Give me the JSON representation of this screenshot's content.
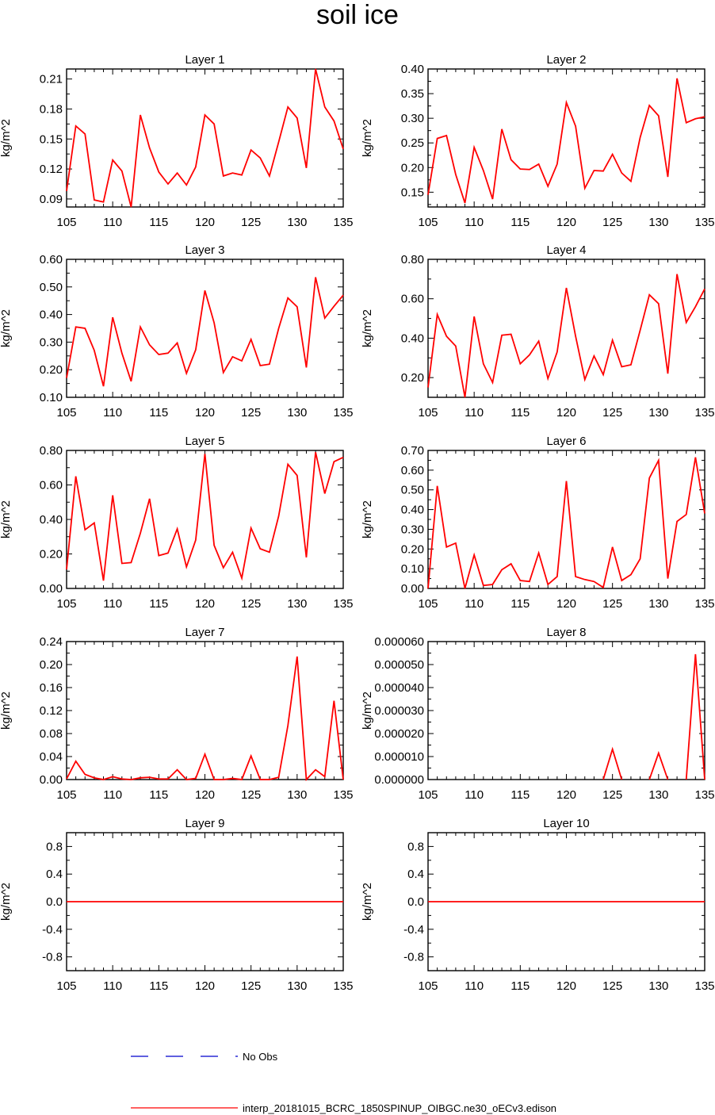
{
  "page_title": "soil ice",
  "colors": {
    "series": "#ff0000",
    "obs": "#0000cc",
    "axis": "#000000"
  },
  "legend": {
    "obs_label": "No Obs",
    "model_label": "interp_20181015_BCRC_1850SPINUP_OIBGC.ne30_oECv3.edison"
  },
  "chart_data": [
    {
      "type": "line",
      "title": "Layer 1",
      "ylabel": "kg/m^2",
      "xlim": [
        105,
        135
      ],
      "ylim": [
        0.082,
        0.22
      ],
      "xticks": [
        105,
        110,
        115,
        120,
        125,
        130,
        135
      ],
      "yticks": [
        0.09,
        0.12,
        0.15,
        0.18,
        0.21
      ],
      "ytick_labels": [
        "0.09",
        "0.12",
        "0.15",
        "0.18",
        "0.21"
      ],
      "x": [
        105,
        106,
        107,
        108,
        109,
        110,
        111,
        112,
        113,
        114,
        115,
        116,
        117,
        118,
        119,
        120,
        121,
        122,
        123,
        124,
        125,
        126,
        127,
        128,
        129,
        130,
        131,
        132,
        133,
        134,
        135
      ],
      "series": [
        {
          "name": "interp_20181015_BCRC_1850SPINUP_OIBGC.ne30_oECv3.edison",
          "values": [
            0.098,
            0.163,
            0.155,
            0.089,
            0.087,
            0.129,
            0.118,
            0.082,
            0.174,
            0.141,
            0.117,
            0.105,
            0.116,
            0.104,
            0.122,
            0.174,
            0.165,
            0.113,
            0.116,
            0.114,
            0.139,
            0.131,
            0.113,
            0.147,
            0.182,
            0.171,
            0.121,
            0.22,
            0.182,
            0.168,
            0.14
          ]
        }
      ]
    },
    {
      "type": "line",
      "title": "Layer 2",
      "ylabel": "kg/m^2",
      "xlim": [
        105,
        135
      ],
      "ylim": [
        0.12,
        0.4
      ],
      "xticks": [
        105,
        110,
        115,
        120,
        125,
        130,
        135
      ],
      "yticks": [
        0.15,
        0.2,
        0.25,
        0.3,
        0.35,
        0.4
      ],
      "ytick_labels": [
        "0.15",
        "0.20",
        "0.25",
        "0.30",
        "0.35",
        "0.40"
      ],
      "x": [
        105,
        106,
        107,
        108,
        109,
        110,
        111,
        112,
        113,
        114,
        115,
        116,
        117,
        118,
        119,
        120,
        121,
        122,
        123,
        124,
        125,
        126,
        127,
        128,
        129,
        130,
        131,
        132,
        133,
        134,
        135
      ],
      "series": [
        {
          "name": "interp_20181015_BCRC_1850SPINUP_OIBGC.ne30_oECv3.edison",
          "values": [
            0.145,
            0.259,
            0.265,
            0.186,
            0.128,
            0.241,
            0.194,
            0.136,
            0.278,
            0.216,
            0.197,
            0.196,
            0.207,
            0.162,
            0.207,
            0.332,
            0.284,
            0.158,
            0.194,
            0.193,
            0.227,
            0.189,
            0.172,
            0.261,
            0.326,
            0.305,
            0.181,
            0.381,
            0.291,
            0.299,
            0.303
          ]
        }
      ]
    },
    {
      "type": "line",
      "title": "Layer 3",
      "ylabel": "kg/m^2",
      "xlim": [
        105,
        135
      ],
      "ylim": [
        0.1,
        0.6
      ],
      "xticks": [
        105,
        110,
        115,
        120,
        125,
        130,
        135
      ],
      "yticks": [
        0.1,
        0.2,
        0.3,
        0.4,
        0.5,
        0.6
      ],
      "ytick_labels": [
        "0.10",
        "0.20",
        "0.30",
        "0.40",
        "0.50",
        "0.60"
      ],
      "x": [
        105,
        106,
        107,
        108,
        109,
        110,
        111,
        112,
        113,
        114,
        115,
        116,
        117,
        118,
        119,
        120,
        121,
        122,
        123,
        124,
        125,
        126,
        127,
        128,
        129,
        130,
        131,
        132,
        133,
        134,
        135
      ],
      "series": [
        {
          "name": "interp_20181015_BCRC_1850SPINUP_OIBGC.ne30_oECv3.edison",
          "values": [
            0.17,
            0.355,
            0.35,
            0.27,
            0.14,
            0.39,
            0.26,
            0.158,
            0.355,
            0.29,
            0.255,
            0.26,
            0.297,
            0.187,
            0.272,
            0.487,
            0.37,
            0.19,
            0.247,
            0.232,
            0.31,
            0.215,
            0.22,
            0.35,
            0.46,
            0.428,
            0.208,
            0.535,
            0.387,
            0.43,
            0.47
          ]
        }
      ]
    },
    {
      "type": "line",
      "title": "Layer 4",
      "ylabel": "kg/m^2",
      "xlim": [
        105,
        135
      ],
      "ylim": [
        0.1,
        0.8
      ],
      "xticks": [
        105,
        110,
        115,
        120,
        125,
        130,
        135
      ],
      "yticks": [
        0.2,
        0.4,
        0.6,
        0.8
      ],
      "ytick_labels": [
        "0.20",
        "0.40",
        "0.60",
        "0.80"
      ],
      "x": [
        105,
        106,
        107,
        108,
        109,
        110,
        111,
        112,
        113,
        114,
        115,
        116,
        117,
        118,
        119,
        120,
        121,
        122,
        123,
        124,
        125,
        126,
        127,
        128,
        129,
        130,
        131,
        132,
        133,
        134,
        135
      ],
      "series": [
        {
          "name": "interp_20181015_BCRC_1850SPINUP_OIBGC.ne30_oECv3.edison",
          "values": [
            0.15,
            0.52,
            0.41,
            0.36,
            0.1,
            0.51,
            0.27,
            0.175,
            0.415,
            0.42,
            0.27,
            0.315,
            0.385,
            0.195,
            0.33,
            0.655,
            0.41,
            0.19,
            0.31,
            0.215,
            0.39,
            0.255,
            0.265,
            0.44,
            0.62,
            0.575,
            0.22,
            0.725,
            0.48,
            0.56,
            0.65
          ]
        }
      ]
    },
    {
      "type": "line",
      "title": "Layer 5",
      "ylabel": "kg/m^2",
      "xlim": [
        105,
        135
      ],
      "ylim": [
        0.0,
        0.8
      ],
      "xticks": [
        105,
        110,
        115,
        120,
        125,
        130,
        135
      ],
      "yticks": [
        0.0,
        0.2,
        0.4,
        0.6,
        0.8
      ],
      "ytick_labels": [
        "0.00",
        "0.20",
        "0.40",
        "0.60",
        "0.80"
      ],
      "x": [
        105,
        106,
        107,
        108,
        109,
        110,
        111,
        112,
        113,
        114,
        115,
        116,
        117,
        118,
        119,
        120,
        121,
        122,
        123,
        124,
        125,
        126,
        127,
        128,
        129,
        130,
        131,
        132,
        133,
        134,
        135
      ],
      "series": [
        {
          "name": "interp_20181015_BCRC_1850SPINUP_OIBGC.ne30_oECv3.edison",
          "values": [
            0.11,
            0.65,
            0.34,
            0.38,
            0.045,
            0.54,
            0.145,
            0.15,
            0.32,
            0.52,
            0.19,
            0.205,
            0.345,
            0.125,
            0.28,
            0.78,
            0.25,
            0.12,
            0.21,
            0.06,
            0.35,
            0.23,
            0.21,
            0.42,
            0.72,
            0.655,
            0.18,
            0.79,
            0.55,
            0.735,
            0.76
          ]
        }
      ]
    },
    {
      "type": "line",
      "title": "Layer 6",
      "ylabel": "kg/m^2",
      "xlim": [
        105,
        135
      ],
      "ylim": [
        0.0,
        0.7
      ],
      "xticks": [
        105,
        110,
        115,
        120,
        125,
        130,
        135
      ],
      "yticks": [
        0.0,
        0.1,
        0.2,
        0.3,
        0.4,
        0.5,
        0.6,
        0.7
      ],
      "ytick_labels": [
        "0.00",
        "0.10",
        "0.20",
        "0.30",
        "0.40",
        "0.50",
        "0.60",
        "0.70"
      ],
      "x": [
        105,
        106,
        107,
        108,
        109,
        110,
        111,
        112,
        113,
        114,
        115,
        116,
        117,
        118,
        119,
        120,
        121,
        122,
        123,
        124,
        125,
        126,
        127,
        128,
        129,
        130,
        131,
        132,
        133,
        134,
        135
      ],
      "series": [
        {
          "name": "interp_20181015_BCRC_1850SPINUP_OIBGC.ne30_oECv3.edison",
          "values": [
            0.0,
            0.52,
            0.21,
            0.23,
            0.0,
            0.17,
            0.015,
            0.02,
            0.095,
            0.125,
            0.04,
            0.035,
            0.18,
            0.02,
            0.06,
            0.545,
            0.06,
            0.045,
            0.035,
            0.005,
            0.21,
            0.04,
            0.07,
            0.15,
            0.56,
            0.65,
            0.05,
            0.34,
            0.375,
            0.665,
            0.38
          ]
        }
      ]
    },
    {
      "type": "line",
      "title": "Layer 7",
      "ylabel": "kg/m^2",
      "xlim": [
        105,
        135
      ],
      "ylim": [
        0.0,
        0.24
      ],
      "xticks": [
        105,
        110,
        115,
        120,
        125,
        130,
        135
      ],
      "yticks": [
        0.0,
        0.04,
        0.08,
        0.12,
        0.16,
        0.2,
        0.24
      ],
      "ytick_labels": [
        "0.00",
        "0.04",
        "0.08",
        "0.12",
        "0.16",
        "0.20",
        "0.24"
      ],
      "x": [
        105,
        106,
        107,
        108,
        109,
        110,
        111,
        112,
        113,
        114,
        115,
        116,
        117,
        118,
        119,
        120,
        121,
        122,
        123,
        124,
        125,
        126,
        127,
        128,
        129,
        130,
        131,
        132,
        133,
        134,
        135
      ],
      "series": [
        {
          "name": "interp_20181015_BCRC_1850SPINUP_OIBGC.ne30_oECv3.edison",
          "values": [
            0.001,
            0.032,
            0.009,
            0.003,
            0.0,
            0.005,
            0.001,
            0.0,
            0.003,
            0.004,
            0.001,
            0.001,
            0.017,
            0.0,
            0.002,
            0.044,
            0.0,
            0.0,
            0.002,
            0.0,
            0.041,
            0.0,
            0.0,
            0.004,
            0.094,
            0.214,
            0.0,
            0.017,
            0.005,
            0.137,
            0.0
          ]
        }
      ]
    },
    {
      "type": "line",
      "title": "Layer 8",
      "ylabel": "kg/m^2",
      "xlim": [
        105,
        135
      ],
      "ylim": [
        0.0,
        6e-05
      ],
      "xticks": [
        105,
        110,
        115,
        120,
        125,
        130,
        135
      ],
      "yticks": [
        0.0,
        1e-05,
        2e-05,
        3e-05,
        4e-05,
        5e-05,
        6e-05
      ],
      "ytick_labels": [
        "0.000000",
        "0.000010",
        "0.000020",
        "0.000030",
        "0.000040",
        "0.000050",
        "0.000060"
      ],
      "x": [
        105,
        106,
        107,
        108,
        109,
        110,
        111,
        112,
        113,
        114,
        115,
        116,
        117,
        118,
        119,
        120,
        121,
        122,
        123,
        124,
        125,
        126,
        127,
        128,
        129,
        130,
        131,
        132,
        133,
        134,
        135
      ],
      "series": [
        {
          "name": "interp_20181015_BCRC_1850SPINUP_OIBGC.ne30_oECv3.edison",
          "values": [
            null,
            null,
            null,
            null,
            null,
            null,
            null,
            null,
            null,
            null,
            null,
            null,
            null,
            null,
            null,
            null,
            null,
            null,
            null,
            0.0,
            1.32e-05,
            0.0,
            null,
            null,
            0.0,
            1.15e-05,
            0.0,
            null,
            0.0,
            5.45e-05,
            0.0
          ]
        }
      ]
    },
    {
      "type": "line",
      "title": "Layer 9",
      "ylabel": "kg/m^2",
      "xlim": [
        105,
        135
      ],
      "ylim": [
        -1.0,
        1.0
      ],
      "xticks": [
        105,
        110,
        115,
        120,
        125,
        130,
        135
      ],
      "yticks": [
        -0.8,
        -0.4,
        0.0,
        0.4,
        0.8
      ],
      "ytick_labels": [
        "-0.8",
        "-0.4",
        "0.0",
        "0.4",
        "0.8"
      ],
      "x": [
        105,
        135
      ],
      "series": [
        {
          "name": "interp_20181015_BCRC_1850SPINUP_OIBGC.ne30_oECv3.edison",
          "values": [
            0.0,
            0.0
          ]
        }
      ]
    },
    {
      "type": "line",
      "title": "Layer 10",
      "ylabel": "kg/m^2",
      "xlim": [
        105,
        135
      ],
      "ylim": [
        -1.0,
        1.0
      ],
      "xticks": [
        105,
        110,
        115,
        120,
        125,
        130,
        135
      ],
      "yticks": [
        -0.8,
        -0.4,
        0.0,
        0.4,
        0.8
      ],
      "ytick_labels": [
        "-0.8",
        "-0.4",
        "0.0",
        "0.4",
        "0.8"
      ],
      "x": [
        105,
        135
      ],
      "series": [
        {
          "name": "interp_20181015_BCRC_1850SPINUP_OIBGC.ne30_oECv3.edison",
          "values": [
            0.0,
            0.0
          ]
        }
      ]
    }
  ]
}
